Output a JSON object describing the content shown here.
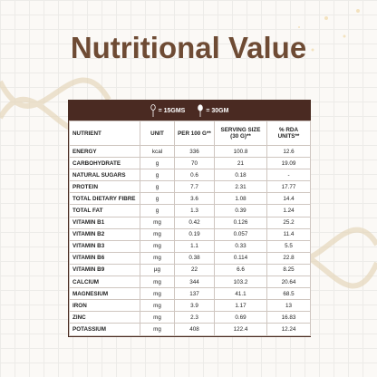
{
  "header": {
    "title": "Nutritional Value"
  },
  "legend": [
    "= 15GMS",
    "= 30GM"
  ],
  "table": {
    "columns": [
      "NUTRIENT",
      "UNIT",
      "PER 100 G**",
      "SERVING SIZE (30 G)**",
      "% RDA UNITS**"
    ],
    "rows": [
      [
        "ENERGY",
        "kcal",
        "336",
        "100.8",
        "12.6"
      ],
      [
        "CARBOHYDRATE",
        "g",
        "70",
        "21",
        "19.09"
      ],
      [
        "NATURAL SUGARS",
        "g",
        "0.6",
        "0.18",
        "-"
      ],
      [
        "PROTEIN",
        "g",
        "7.7",
        "2.31",
        "17.77"
      ],
      [
        "TOTAL DIETARY FIBRE",
        "g",
        "3.6",
        "1.08",
        "14.4"
      ],
      [
        "TOTAL FAT",
        "g",
        "1.3",
        "0.39",
        "1.24"
      ],
      [
        "VITAMIN B1",
        "mg",
        "0.42",
        "0.126",
        "25.2"
      ],
      [
        "VITAMIN B2",
        "mg",
        "0.19",
        "0.057",
        "11.4"
      ],
      [
        "VITAMIN B3",
        "mg",
        "1.1",
        "0.33",
        "5.5"
      ],
      [
        "VITAMIN B6",
        "mg",
        "0.38",
        "0.114",
        "22.8"
      ],
      [
        "VITAMIN B9",
        "µg",
        "22",
        "6.6",
        "8.25"
      ],
      [
        "CALCIUM",
        "mg",
        "344",
        "103.2",
        "20.64"
      ],
      [
        "MAGNESIUM",
        "mg",
        "137",
        "41.1",
        "68.5"
      ],
      [
        "IRON",
        "mg",
        "3.9",
        "1.17",
        "13"
      ],
      [
        "ZINC",
        "mg",
        "2.3",
        "0.69",
        "16.83"
      ],
      [
        "POTASSIUM",
        "mg",
        "408",
        "122.4",
        "12.24"
      ]
    ]
  }
}
